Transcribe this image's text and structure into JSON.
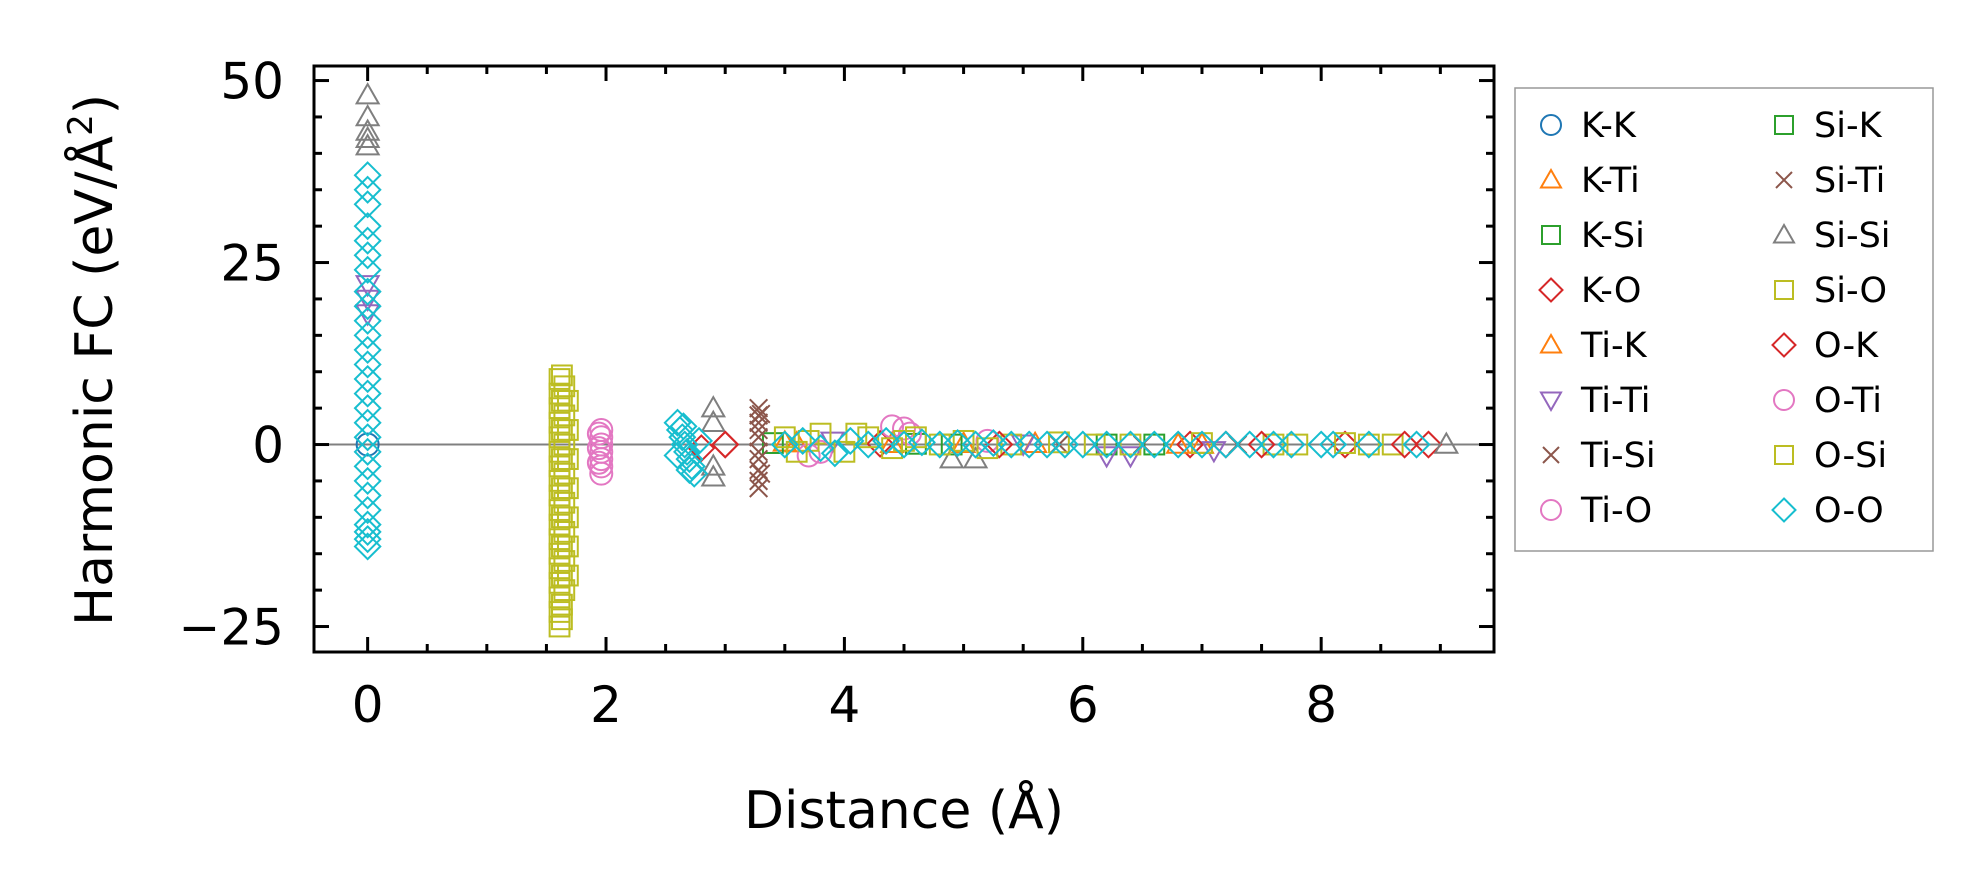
{
  "chart_data": {
    "type": "scatter",
    "xlabel": "Distance (Å)",
    "ylabel": "Harmonic FC (eV/Å²)",
    "ylabel_base": "Harmonic FC (eV/Å",
    "ylabel_sup": "2",
    "ylabel_close": ")",
    "xlim": [
      -0.45,
      9.45
    ],
    "ylim": [
      -28.5,
      52
    ],
    "xticks": [
      0,
      2,
      4,
      6,
      8
    ],
    "xtick_labels": [
      "0",
      "2",
      "4",
      "6",
      "8"
    ],
    "yticks": [
      -25,
      0,
      25,
      50
    ],
    "ytick_labels": [
      "−25",
      "0",
      "25",
      "50"
    ],
    "zero_line": true,
    "grid": false,
    "legend_position": "outside-right",
    "legend_columns": 2,
    "series": [
      {
        "name": "K-K",
        "marker": "circle",
        "color": "#1f77b4",
        "points": [
          [
            0,
            0
          ]
        ]
      },
      {
        "name": "K-Ti",
        "marker": "triangle-up",
        "color": "#ff7f0e",
        "points": [
          [
            3.5,
            0.3
          ],
          [
            4.4,
            0.1
          ],
          [
            5.6,
            0.1
          ],
          [
            7.0,
            0
          ]
        ]
      },
      {
        "name": "K-Si",
        "marker": "square",
        "color": "#2ca02c",
        "points": [
          [
            3.4,
            0.2
          ],
          [
            4.6,
            0.1
          ],
          [
            6.2,
            0
          ]
        ]
      },
      {
        "name": "K-O",
        "marker": "diamond",
        "color": "#d62728",
        "points": [
          [
            2.8,
            -0.5
          ],
          [
            3.0,
            0
          ],
          [
            4.3,
            0.1
          ],
          [
            6.9,
            0
          ],
          [
            7.2,
            0
          ],
          [
            8.2,
            0
          ],
          [
            8.9,
            0
          ]
        ]
      },
      {
        "name": "Ti-K",
        "marker": "triangle-up",
        "color": "#ff7f0e",
        "points": [
          [
            3.6,
            0.2
          ],
          [
            5.0,
            0.1
          ],
          [
            6.8,
            0
          ]
        ]
      },
      {
        "name": "Ti-Ti",
        "marker": "triangle-down",
        "color": "#9467bd",
        "points": [
          [
            0,
            22
          ],
          [
            0,
            20
          ],
          [
            0,
            18
          ],
          [
            3.9,
            0.5
          ],
          [
            5.5,
            0.1
          ],
          [
            6.2,
            -1.5
          ],
          [
            6.4,
            -1.5
          ],
          [
            7.1,
            -0.8
          ]
        ]
      },
      {
        "name": "Ti-Si",
        "marker": "x",
        "color": "#8c564b",
        "points": [
          [
            3.28,
            5
          ],
          [
            3.28,
            4
          ],
          [
            3.28,
            3
          ],
          [
            3.28,
            2
          ],
          [
            3.28,
            1
          ],
          [
            3.28,
            -1
          ],
          [
            3.28,
            -2
          ],
          [
            3.28,
            -3.5
          ],
          [
            3.28,
            -5
          ],
          [
            3.28,
            -6
          ],
          [
            5.8,
            0
          ],
          [
            7.3,
            0
          ]
        ]
      },
      {
        "name": "Ti-O",
        "marker": "circle",
        "color": "#e377c2",
        "points": [
          [
            1.96,
            2
          ],
          [
            1.96,
            1
          ],
          [
            1.96,
            0
          ],
          [
            1.96,
            -1
          ],
          [
            1.96,
            -2
          ],
          [
            1.96,
            -3
          ],
          [
            1.96,
            -4
          ],
          [
            3.7,
            -1.5
          ],
          [
            4.4,
            2.5
          ],
          [
            4.5,
            2.2
          ],
          [
            4.55,
            1.5
          ],
          [
            5.2,
            0.5
          ]
        ]
      },
      {
        "name": "Si-K",
        "marker": "square",
        "color": "#2ca02c",
        "points": [
          [
            4.9,
            0
          ],
          [
            6.6,
            0
          ]
        ]
      },
      {
        "name": "Si-Ti",
        "marker": "x",
        "color": "#8c564b",
        "points": [
          [
            3.3,
            4.2
          ],
          [
            3.3,
            -4
          ],
          [
            6.5,
            0
          ]
        ]
      },
      {
        "name": "Si-Si",
        "marker": "triangle-up",
        "color": "#7f7f7f",
        "points": [
          [
            0,
            48
          ],
          [
            0,
            45
          ],
          [
            0,
            43
          ],
          [
            0,
            42
          ],
          [
            0,
            41
          ],
          [
            2.9,
            5
          ],
          [
            2.9,
            3
          ],
          [
            2.9,
            -3
          ],
          [
            2.9,
            -4.5
          ],
          [
            4.9,
            -2
          ],
          [
            5.1,
            -2
          ],
          [
            9.05,
            0
          ]
        ]
      },
      {
        "name": "Si-O",
        "marker": "square",
        "color": "#bcbd22",
        "points": [
          [
            1.61,
            9
          ],
          [
            1.61,
            7
          ],
          [
            1.61,
            5
          ],
          [
            1.61,
            3
          ],
          [
            1.61,
            1
          ],
          [
            1.61,
            -1
          ],
          [
            1.61,
            -3
          ],
          [
            1.61,
            -5
          ],
          [
            1.61,
            -7
          ],
          [
            1.61,
            -9
          ],
          [
            1.61,
            -11
          ],
          [
            1.61,
            -13
          ],
          [
            1.61,
            -15
          ],
          [
            1.61,
            -17
          ],
          [
            1.61,
            -19
          ],
          [
            1.61,
            -21
          ],
          [
            1.61,
            -23
          ],
          [
            1.61,
            -25
          ],
          [
            1.65,
            8
          ],
          [
            1.65,
            4
          ],
          [
            1.65,
            0
          ],
          [
            1.65,
            -4
          ],
          [
            1.65,
            -8
          ],
          [
            1.65,
            -12
          ],
          [
            1.65,
            -16
          ],
          [
            1.65,
            -20
          ],
          [
            1.68,
            6
          ],
          [
            1.68,
            2
          ],
          [
            1.68,
            -2
          ],
          [
            1.68,
            -6
          ],
          [
            1.68,
            -10
          ],
          [
            1.68,
            -14
          ],
          [
            1.68,
            -18
          ],
          [
            3.5,
            1
          ],
          [
            3.6,
            -1
          ],
          [
            3.8,
            1.5
          ],
          [
            4.0,
            -1
          ],
          [
            4.2,
            1
          ],
          [
            4.4,
            -0.5
          ],
          [
            4.6,
            1
          ],
          [
            4.8,
            0
          ],
          [
            5.0,
            0.5
          ],
          [
            5.4,
            0
          ],
          [
            5.8,
            0.3
          ],
          [
            6.4,
            0
          ],
          [
            7.0,
            0.2
          ],
          [
            7.6,
            0
          ],
          [
            8.2,
            0.2
          ],
          [
            8.6,
            0
          ]
        ]
      },
      {
        "name": "O-K",
        "marker": "diamond",
        "color": "#d62728",
        "points": [
          [
            3.0,
            0
          ],
          [
            5.3,
            0
          ],
          [
            7.5,
            0
          ],
          [
            8.7,
            0
          ]
        ]
      },
      {
        "name": "O-Ti",
        "marker": "circle",
        "color": "#e377c2",
        "points": [
          [
            1.94,
            1.5
          ],
          [
            1.94,
            -0.5
          ],
          [
            1.94,
            -2.5
          ],
          [
            3.8,
            -1
          ]
        ]
      },
      {
        "name": "O-Si",
        "marker": "square",
        "color": "#bcbd22",
        "points": [
          [
            1.63,
            9.5
          ],
          [
            1.63,
            6
          ],
          [
            1.63,
            2
          ],
          [
            1.63,
            -2
          ],
          [
            1.63,
            -6
          ],
          [
            1.63,
            -10
          ],
          [
            1.63,
            -14
          ],
          [
            1.63,
            -18
          ],
          [
            1.63,
            -22
          ],
          [
            1.63,
            -24
          ],
          [
            3.7,
            0.5
          ],
          [
            4.1,
            1.5
          ],
          [
            4.5,
            0.5
          ],
          [
            5.2,
            -0.5
          ],
          [
            6.1,
            0
          ],
          [
            7.8,
            0
          ],
          [
            8.4,
            0
          ]
        ]
      },
      {
        "name": "O-O",
        "marker": "diamond",
        "color": "#17becf",
        "points": [
          [
            0,
            37
          ],
          [
            0,
            35
          ],
          [
            0,
            33
          ],
          [
            0,
            30
          ],
          [
            0,
            28
          ],
          [
            0,
            26
          ],
          [
            0,
            24
          ],
          [
            0,
            21
          ],
          [
            0,
            19
          ],
          [
            0,
            17
          ],
          [
            0,
            15
          ],
          [
            0,
            13
          ],
          [
            0,
            11
          ],
          [
            0,
            9
          ],
          [
            0,
            7
          ],
          [
            0,
            5
          ],
          [
            0,
            3
          ],
          [
            0,
            1
          ],
          [
            0,
            -1
          ],
          [
            0,
            -3
          ],
          [
            0,
            -5
          ],
          [
            0,
            -7
          ],
          [
            0,
            -9
          ],
          [
            0,
            -11
          ],
          [
            0,
            -12
          ],
          [
            0,
            -13
          ],
          [
            0,
            -14
          ],
          [
            2.6,
            3
          ],
          [
            2.62,
            2
          ],
          [
            2.64,
            1
          ],
          [
            2.66,
            0
          ],
          [
            2.68,
            -1
          ],
          [
            2.7,
            -2
          ],
          [
            2.72,
            -3
          ],
          [
            2.74,
            -4
          ],
          [
            2.6,
            -1.5
          ],
          [
            2.65,
            2.5
          ],
          [
            2.7,
            -3.5
          ],
          [
            2.78,
            0.5
          ],
          [
            3.5,
            0
          ],
          [
            3.65,
            0.5
          ],
          [
            3.8,
            -0.5
          ],
          [
            3.92,
            -1.2
          ],
          [
            4.05,
            0.5
          ],
          [
            4.2,
            0
          ],
          [
            4.35,
            0.5
          ],
          [
            4.5,
            0
          ],
          [
            4.65,
            0.3
          ],
          [
            4.8,
            0
          ],
          [
            4.95,
            0.2
          ],
          [
            5.1,
            0
          ],
          [
            5.25,
            0.2
          ],
          [
            5.4,
            0
          ],
          [
            5.55,
            0
          ],
          [
            5.7,
            0
          ],
          [
            5.85,
            0
          ],
          [
            6.0,
            0
          ],
          [
            6.2,
            0
          ],
          [
            6.4,
            0
          ],
          [
            6.6,
            0
          ],
          [
            6.8,
            0
          ],
          [
            7.0,
            0
          ],
          [
            7.2,
            0
          ],
          [
            7.4,
            0
          ],
          [
            7.6,
            0
          ],
          [
            7.75,
            0
          ],
          [
            8.0,
            0
          ],
          [
            8.1,
            0
          ],
          [
            8.4,
            0
          ],
          [
            8.8,
            0
          ]
        ]
      }
    ]
  }
}
